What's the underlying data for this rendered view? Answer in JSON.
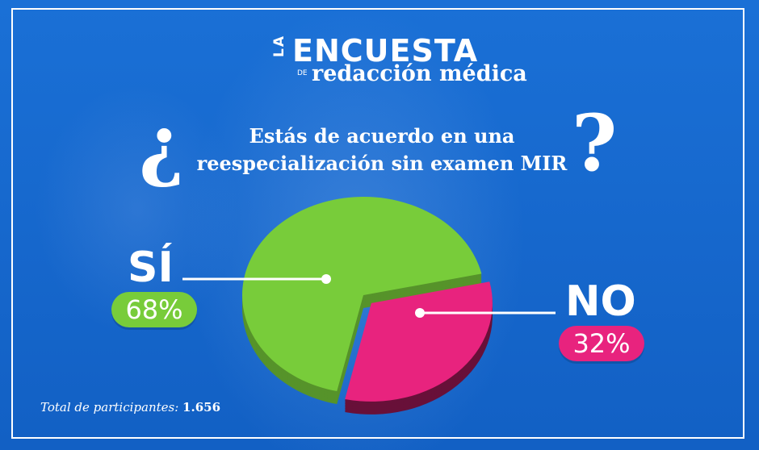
{
  "brand": {
    "la": "LA",
    "encuesta": "ENCUESTA",
    "de": "DE",
    "publication": "redacción médica"
  },
  "question": {
    "open_mark": "¿",
    "line1": "Estás de acuerdo en una",
    "line2": "reespecialización sin examen MIR",
    "close_mark": "?"
  },
  "colors": {
    "background": "#1b6fd4",
    "si": "#78cc3a",
    "no": "#e8237e"
  },
  "chart_data": {
    "type": "pie",
    "categories": [
      "SÍ",
      "NO"
    ],
    "values": [
      68,
      32
    ],
    "labels": [
      "68%",
      "32%"
    ],
    "colors": [
      "#78cc3a",
      "#e8237e"
    ]
  },
  "labels": {
    "si": "SÍ",
    "si_pct": "68%",
    "no": "NO",
    "no_pct": "32%"
  },
  "footer": {
    "text": "Total de participantes:",
    "count": "1.656"
  }
}
